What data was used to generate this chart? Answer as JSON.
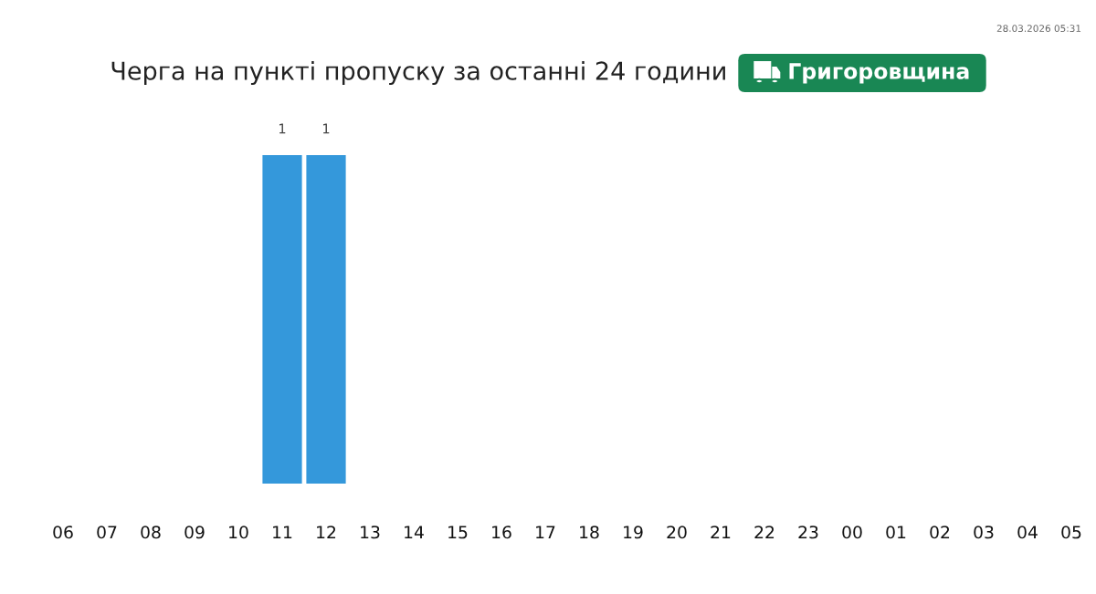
{
  "chart_data": {
    "type": "bar",
    "title": "Черга на пункті пропуску за останні 24 години",
    "subtitle": "Григоровщина",
    "annotations": [
      "28.03.2026 05:31"
    ],
    "categories": [
      "06",
      "07",
      "08",
      "09",
      "10",
      "11",
      "12",
      "13",
      "14",
      "15",
      "16",
      "17",
      "18",
      "19",
      "20",
      "21",
      "22",
      "23",
      "00",
      "01",
      "02",
      "03",
      "04",
      "05"
    ],
    "values": [
      0,
      0,
      0,
      0,
      0,
      1,
      1,
      0,
      0,
      0,
      0,
      0,
      0,
      0,
      0,
      0,
      0,
      0,
      0,
      0,
      0,
      0,
      0,
      0
    ],
    "value_labels": [
      null,
      null,
      null,
      null,
      null,
      "1",
      "1",
      null,
      null,
      null,
      null,
      null,
      null,
      null,
      null,
      null,
      null,
      null,
      null,
      null,
      null,
      null,
      null,
      null
    ],
    "color": "#3498db",
    "tick_labels": "x"
  }
}
